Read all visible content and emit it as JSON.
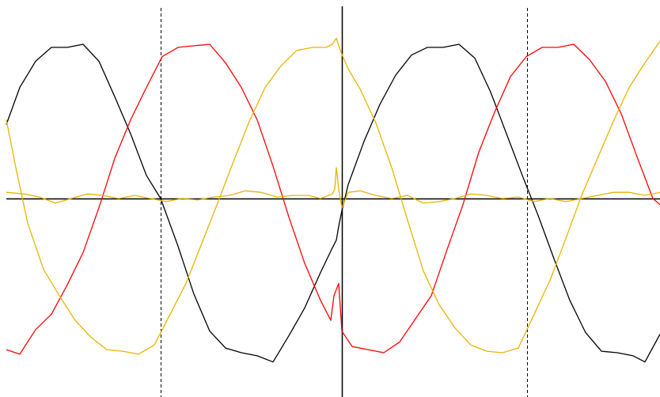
{
  "chart_data": {
    "type": "line",
    "title": "",
    "xlabel": "",
    "ylabel": "",
    "xlim": [
      0,
      834
    ],
    "ylim": [
      -1.1,
      1.1
    ],
    "grid": false,
    "legend": "none",
    "axes": {
      "horizontal_axis": {
        "y": 0,
        "style": "solid"
      },
      "vertical_axis": {
        "x": 432,
        "style": "solid"
      },
      "markers": [
        {
          "x": 203,
          "style": "dashed"
        },
        {
          "x": 666,
          "style": "dashed"
        }
      ]
    },
    "series": [
      {
        "color": "#000000",
        "points": [
          [
            8,
            0.48
          ],
          [
            25,
            0.72
          ],
          [
            45,
            0.89
          ],
          [
            65,
            0.98
          ],
          [
            85,
            0.98
          ],
          [
            105,
            1.0
          ],
          [
            125,
            0.89
          ],
          [
            145,
            0.66
          ],
          [
            165,
            0.42
          ],
          [
            185,
            0.15
          ],
          [
            203,
            0.0
          ],
          [
            225,
            -0.31
          ],
          [
            245,
            -0.62
          ],
          [
            265,
            -0.86
          ],
          [
            285,
            -0.97
          ],
          [
            305,
            -1.0
          ],
          [
            325,
            -1.02
          ],
          [
            345,
            -1.06
          ],
          [
            365,
            -0.89
          ],
          [
            385,
            -0.71
          ],
          [
            405,
            -0.48
          ],
          [
            420,
            -0.32
          ],
          [
            425,
            -0.27
          ],
          [
            428,
            -0.18
          ],
          [
            432,
            -0.08
          ],
          [
            440,
            0.09
          ],
          [
            460,
            0.37
          ],
          [
            480,
            0.61
          ],
          [
            500,
            0.8
          ],
          [
            520,
            0.93
          ],
          [
            540,
            0.98
          ],
          [
            560,
            0.98
          ],
          [
            580,
            1.0
          ],
          [
            600,
            0.91
          ],
          [
            620,
            0.69
          ],
          [
            640,
            0.42
          ],
          [
            660,
            0.15
          ],
          [
            680,
            -0.11
          ],
          [
            700,
            -0.39
          ],
          [
            720,
            -0.66
          ],
          [
            740,
            -0.87
          ],
          [
            760,
            -0.99
          ],
          [
            780,
            -1.0
          ],
          [
            800,
            -1.02
          ],
          [
            815,
            -1.06
          ],
          [
            834,
            -0.88
          ]
        ]
      },
      {
        "color": "#ff0000",
        "points": [
          [
            8,
            -0.98
          ],
          [
            25,
            -1.01
          ],
          [
            45,
            -0.85
          ],
          [
            65,
            -0.75
          ],
          [
            85,
            -0.56
          ],
          [
            105,
            -0.35
          ],
          [
            125,
            -0.06
          ],
          [
            145,
            0.26
          ],
          [
            165,
            0.51
          ],
          [
            185,
            0.72
          ],
          [
            205,
            0.92
          ],
          [
            225,
            0.98
          ],
          [
            245,
            0.99
          ],
          [
            265,
            1.0
          ],
          [
            285,
            0.88
          ],
          [
            305,
            0.72
          ],
          [
            325,
            0.51
          ],
          [
            345,
            0.21
          ],
          [
            365,
            -0.12
          ],
          [
            385,
            -0.42
          ],
          [
            405,
            -0.66
          ],
          [
            418,
            -0.79
          ],
          [
            422,
            -0.63
          ],
          [
            428,
            -0.55
          ],
          [
            432,
            -0.86
          ],
          [
            445,
            -0.96
          ],
          [
            465,
            -0.98
          ],
          [
            485,
            -1.0
          ],
          [
            505,
            -0.93
          ],
          [
            525,
            -0.78
          ],
          [
            545,
            -0.63
          ],
          [
            565,
            -0.33
          ],
          [
            585,
            -0.04
          ],
          [
            605,
            0.3
          ],
          [
            625,
            0.56
          ],
          [
            645,
            0.79
          ],
          [
            665,
            0.92
          ],
          [
            685,
            0.98
          ],
          [
            705,
            0.98
          ],
          [
            725,
            1.0
          ],
          [
            745,
            0.9
          ],
          [
            765,
            0.76
          ],
          [
            785,
            0.55
          ],
          [
            805,
            0.27
          ],
          [
            825,
            0.0
          ],
          [
            834,
            -0.04
          ]
        ]
      },
      {
        "color": "#e8b400",
        "points": [
          [
            8,
            0.51
          ],
          [
            20,
            0.2
          ],
          [
            35,
            -0.16
          ],
          [
            55,
            -0.46
          ],
          [
            75,
            -0.63
          ],
          [
            95,
            -0.79
          ],
          [
            115,
            -0.9
          ],
          [
            135,
            -0.98
          ],
          [
            155,
            -0.99
          ],
          [
            175,
            -1.01
          ],
          [
            195,
            -0.95
          ],
          [
            215,
            -0.75
          ],
          [
            235,
            -0.55
          ],
          [
            255,
            -0.29
          ],
          [
            275,
            -0.03
          ],
          [
            295,
            0.24
          ],
          [
            315,
            0.5
          ],
          [
            335,
            0.72
          ],
          [
            355,
            0.86
          ],
          [
            375,
            0.96
          ],
          [
            395,
            0.98
          ],
          [
            412,
            0.98
          ],
          [
            420,
            1.0
          ],
          [
            425,
            1.04
          ],
          [
            430,
            0.96
          ],
          [
            440,
            0.84
          ],
          [
            455,
            0.71
          ],
          [
            475,
            0.49
          ],
          [
            495,
            0.2
          ],
          [
            515,
            -0.14
          ],
          [
            535,
            -0.47
          ],
          [
            555,
            -0.69
          ],
          [
            575,
            -0.84
          ],
          [
            595,
            -0.95
          ],
          [
            615,
            -0.99
          ],
          [
            635,
            -1.0
          ],
          [
            655,
            -0.97
          ],
          [
            675,
            -0.75
          ],
          [
            695,
            -0.53
          ],
          [
            715,
            -0.26
          ],
          [
            735,
            0.02
          ],
          [
            755,
            0.26
          ],
          [
            775,
            0.5
          ],
          [
            795,
            0.72
          ],
          [
            815,
            0.88
          ],
          [
            834,
            1.02
          ]
        ]
      },
      {
        "color": "#e8b400",
        "points": [
          [
            8,
            0.04
          ],
          [
            30,
            0.03
          ],
          [
            50,
            0.01
          ],
          [
            70,
            -0.03
          ],
          [
            90,
            0.0
          ],
          [
            110,
            0.03
          ],
          [
            130,
            0.02
          ],
          [
            150,
            0.0
          ],
          [
            170,
            0.02
          ],
          [
            190,
            0.0
          ],
          [
            210,
            -0.02
          ],
          [
            230,
            0.0
          ],
          [
            250,
            -0.01
          ],
          [
            270,
            0.01
          ],
          [
            290,
            0.02
          ],
          [
            310,
            0.05
          ],
          [
            330,
            0.04
          ],
          [
            350,
            0.01
          ],
          [
            370,
            0.02
          ],
          [
            390,
            0.02
          ],
          [
            405,
            0.0
          ],
          [
            415,
            0.02
          ],
          [
            420,
            0.03
          ],
          [
            423,
            0.06
          ],
          [
            425,
            0.2
          ],
          [
            428,
            0.06
          ],
          [
            432,
            -0.06
          ],
          [
            440,
            0.04
          ],
          [
            455,
            0.05
          ],
          [
            475,
            0.02
          ],
          [
            495,
            0.0
          ],
          [
            515,
            0.02
          ],
          [
            535,
            -0.03
          ],
          [
            555,
            -0.02
          ],
          [
            575,
            0.0
          ],
          [
            595,
            0.03
          ],
          [
            615,
            0.02
          ],
          [
            635,
            0.0
          ],
          [
            655,
            0.01
          ],
          [
            675,
            -0.02
          ],
          [
            695,
            0.0
          ],
          [
            715,
            -0.02
          ],
          [
            735,
            0.0
          ],
          [
            755,
            0.02
          ],
          [
            775,
            0.04
          ],
          [
            795,
            0.04
          ],
          [
            815,
            0.02
          ],
          [
            834,
            0.04
          ]
        ]
      }
    ]
  }
}
